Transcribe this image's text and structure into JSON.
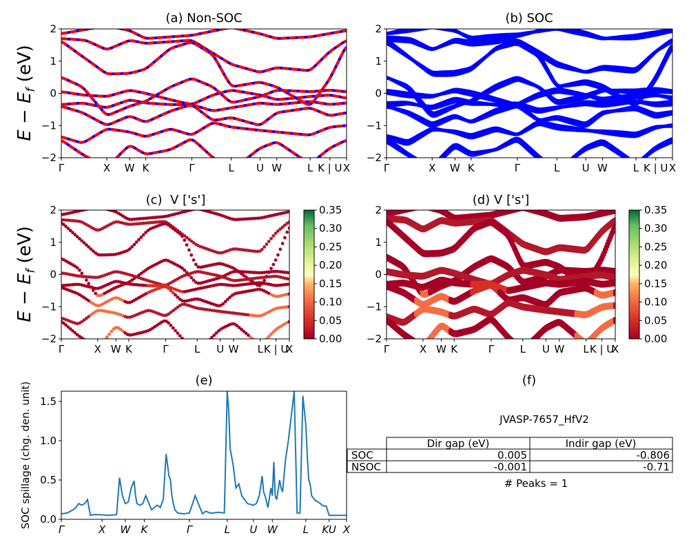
{
  "colors": {
    "nonsoc_a": "#ff0000",
    "nonsoc_b": "#0000ff",
    "soc": "#0000ff",
    "spillage": "#1f77b4"
  },
  "chart_data": [
    {
      "id": "a",
      "type": "line",
      "title": "(a) Non-SOC",
      "ylabel": "E − E_f (eV)",
      "ylim": [
        -2,
        2
      ],
      "yticks": [
        "2",
        "1",
        "0",
        "−1",
        "−2"
      ],
      "kpoints": [
        "Γ",
        "X",
        "W",
        "K",
        "Γ",
        "L",
        "U",
        "W",
        "L",
        "K | U",
        "X"
      ],
      "kpos": [
        0,
        1.5,
        2.25,
        2.78,
        4.3,
        5.6,
        6.55,
        7.1,
        8.2,
        8.85,
        9.4
      ],
      "bands": [
        [
          [
            0,
            1.85
          ],
          [
            1.5,
            2.1
          ],
          [
            2.25,
            1.95
          ],
          [
            2.78,
            1.7
          ],
          [
            4.3,
            1.8
          ],
          [
            5.6,
            2.05
          ],
          [
            6.55,
            1.85
          ],
          [
            7.1,
            1.7
          ],
          [
            8.2,
            1.75
          ],
          [
            9.4,
            1.95
          ]
        ],
        [
          [
            0,
            1.7
          ],
          [
            0.8,
            1.65
          ],
          [
            1.5,
            1.35
          ],
          [
            2.25,
            1.65
          ],
          [
            2.78,
            1.55
          ],
          [
            4.3,
            1.65
          ],
          [
            5.6,
            0.9
          ],
          [
            6.55,
            0.65
          ],
          [
            7.1,
            0.8
          ],
          [
            8.2,
            0.7
          ],
          [
            8.85,
            1.3
          ],
          [
            9.4,
            1.65
          ]
        ],
        [
          [
            0,
            1.62
          ],
          [
            1.5,
            0.6
          ],
          [
            2.25,
            0.62
          ],
          [
            2.78,
            0.75
          ],
          [
            3.6,
            1.4
          ],
          [
            4.3,
            1.6
          ],
          [
            5.0,
            1.2
          ],
          [
            5.6,
            0.2
          ],
          [
            6.55,
            0.35
          ],
          [
            7.1,
            0.2
          ],
          [
            8.2,
            -0.4
          ],
          [
            8.85,
            0.45
          ],
          [
            9.4,
            1.5
          ]
        ],
        [
          [
            0,
            0.5
          ],
          [
            0.7,
            0.2
          ],
          [
            1.5,
            -0.7
          ],
          [
            2.25,
            -0.4
          ],
          [
            2.78,
            -0.25
          ],
          [
            3.6,
            0.2
          ],
          [
            4.3,
            0.47
          ],
          [
            5.0,
            0.2
          ],
          [
            5.6,
            -0.3
          ],
          [
            6.55,
            -0.1
          ],
          [
            7.1,
            0.1
          ],
          [
            8.2,
            0.05
          ],
          [
            8.85,
            0.1
          ],
          [
            9.4,
            0.05
          ]
        ],
        [
          [
            0,
            0.05
          ],
          [
            0.7,
            -0.05
          ],
          [
            1.5,
            -0.1
          ],
          [
            2.25,
            0.1
          ],
          [
            2.78,
            0.0
          ],
          [
            3.6,
            -0.2
          ],
          [
            4.3,
            -0.35
          ],
          [
            5.0,
            -0.05
          ],
          [
            5.6,
            0.1
          ],
          [
            6.55,
            -0.05
          ],
          [
            7.1,
            -0.2
          ],
          [
            8.2,
            -0.1
          ],
          [
            8.85,
            -0.05
          ],
          [
            9.4,
            -0.15
          ]
        ],
        [
          [
            0,
            -0.35
          ],
          [
            0.7,
            -0.3
          ],
          [
            1.5,
            -0.45
          ],
          [
            2.25,
            -0.2
          ],
          [
            2.78,
            -0.3
          ],
          [
            3.6,
            -0.35
          ],
          [
            4.3,
            -0.35
          ],
          [
            5.0,
            -0.55
          ],
          [
            5.6,
            -0.45
          ],
          [
            6.55,
            -0.3
          ],
          [
            7.1,
            -0.35
          ],
          [
            8.2,
            -0.25
          ],
          [
            8.85,
            -0.35
          ],
          [
            9.4,
            -0.3
          ]
        ],
        [
          [
            0,
            -0.4
          ],
          [
            0.7,
            -0.6
          ],
          [
            1.5,
            -1.0
          ],
          [
            2.25,
            -0.7
          ],
          [
            2.78,
            -0.9
          ],
          [
            3.6,
            -0.55
          ],
          [
            4.3,
            -0.35
          ],
          [
            5.0,
            -0.85
          ],
          [
            5.6,
            -0.75
          ],
          [
            6.55,
            -1.0
          ],
          [
            7.1,
            -0.6
          ],
          [
            8.2,
            -0.45
          ],
          [
            8.85,
            -0.7
          ],
          [
            9.4,
            -0.6
          ]
        ],
        [
          [
            0,
            -1.35
          ],
          [
            0.7,
            -1.55
          ],
          [
            1.5,
            -1.1
          ],
          [
            2.25,
            -1.2
          ],
          [
            2.78,
            -1.35
          ],
          [
            3.6,
            -1.1
          ],
          [
            4.3,
            -1.3
          ],
          [
            5.0,
            -0.9
          ],
          [
            5.6,
            -1.05
          ],
          [
            6.55,
            -1.15
          ],
          [
            7.1,
            -1.2
          ],
          [
            8.2,
            -1.3
          ],
          [
            8.85,
            -1.05
          ],
          [
            9.4,
            -1.0
          ]
        ],
        [
          [
            0,
            -1.45
          ],
          [
            0.7,
            -1.9
          ],
          [
            1.5,
            -2.3
          ],
          [
            2.25,
            -1.6
          ],
          [
            2.78,
            -1.9
          ],
          [
            3.6,
            -1.75
          ],
          [
            4.3,
            -1.4
          ],
          [
            5.0,
            -2.0
          ],
          [
            5.6,
            -2.4
          ],
          [
            6.55,
            -1.7
          ],
          [
            7.1,
            -1.5
          ],
          [
            8.2,
            -2.2
          ],
          [
            8.85,
            -1.7
          ],
          [
            9.4,
            -1.45
          ]
        ]
      ]
    },
    {
      "id": "b",
      "type": "line",
      "title": "(b) SOC",
      "ylim": [
        -2,
        2
      ],
      "yticks": [
        "2",
        "1",
        "0",
        "−1",
        "−2"
      ],
      "kpoints": [
        "Γ",
        "X",
        "W",
        "K",
        "Γ",
        "L",
        "U",
        "W",
        "L",
        "K | U",
        "X"
      ],
      "kpos": [
        0,
        1.5,
        2.25,
        2.78,
        4.3,
        5.6,
        6.55,
        7.1,
        8.2,
        8.85,
        9.4
      ]
    },
    {
      "id": "c",
      "type": "scatter",
      "title": "(c)  V ['s']",
      "ylabel": "E − E_f (eV)",
      "ylim": [
        -2,
        2
      ],
      "yticks": [
        "2",
        "1",
        "0",
        "−1",
        "−2"
      ],
      "kpoints": [
        "Γ",
        "X",
        "W",
        "K",
        "Γ",
        "L",
        "U",
        "W",
        "L",
        "K | U",
        "X"
      ],
      "kpos": [
        0,
        1.5,
        2.25,
        2.78,
        4.3,
        5.6,
        6.55,
        7.1,
        8.2,
        8.85,
        9.4
      ],
      "colorbar": {
        "min": 0.0,
        "max": 0.35,
        "ticks": [
          "0.35",
          "0.30",
          "0.25",
          "0.20",
          "0.15",
          "0.10",
          "0.05",
          "0.00"
        ]
      }
    },
    {
      "id": "d",
      "type": "scatter",
      "title": "(d) V ['s']",
      "ylim": [
        -2,
        2
      ],
      "yticks": [
        "2",
        "1",
        "0",
        "−1",
        "−2"
      ],
      "kpoints": [
        "Γ",
        "X",
        "W",
        "K",
        "Γ",
        "L",
        "U",
        "W",
        "L",
        "K | U",
        "X"
      ],
      "kpos": [
        0,
        1.5,
        2.25,
        2.78,
        4.3,
        5.6,
        6.55,
        7.1,
        8.2,
        8.85,
        9.4
      ],
      "colorbar": {
        "min": 0.0,
        "max": 0.35,
        "ticks": [
          "0.35",
          "0.30",
          "0.25",
          "0.20",
          "0.15",
          "0.10",
          "0.05",
          "0.00"
        ]
      }
    },
    {
      "id": "e",
      "type": "line",
      "title": "(e)",
      "ylabel": "SOC spillage (chg. den. unit)",
      "ylim": [
        0,
        1.63
      ],
      "yticks": [
        "1.5",
        "1.0",
        "0.5",
        "0.0"
      ],
      "kpoints": [
        "Γ",
        "X",
        "W",
        "K",
        "Γ",
        "L",
        "U",
        "W",
        "L",
        "KU",
        "X"
      ],
      "kpos": [
        0,
        1.4,
        2.2,
        2.85,
        4.4,
        5.7,
        6.6,
        7.25,
        8.4,
        9.2,
        9.8
      ],
      "x": [
        0,
        0.2,
        0.4,
        0.5,
        0.6,
        0.7,
        0.8,
        0.9,
        1.0,
        1.1,
        1.3,
        1.6,
        1.9,
        1.95,
        2.0,
        2.1,
        2.2,
        2.3,
        2.4,
        2.5,
        2.55,
        2.6,
        2.7,
        2.8,
        2.9,
        3.1,
        3.2,
        3.3,
        3.4,
        3.5,
        3.6,
        3.7,
        3.75,
        3.8,
        3.85,
        3.9,
        4.0,
        4.2,
        4.4,
        4.6,
        4.85,
        4.95,
        5.0,
        5.1,
        5.2,
        5.4,
        5.6,
        5.7,
        5.75,
        5.8,
        5.9,
        6.0,
        6.1,
        6.2,
        6.4,
        6.6,
        6.7,
        6.8,
        6.9,
        6.95,
        7.0,
        7.1,
        7.2,
        7.25,
        7.3,
        7.35,
        7.4,
        7.5,
        7.55,
        7.6,
        7.7,
        7.8,
        8.0,
        8.1,
        8.2,
        8.3,
        8.4,
        8.45,
        8.5,
        8.55,
        8.6,
        8.7,
        8.9,
        9.0,
        9.1,
        9.2,
        9.3,
        9.5,
        9.8
      ],
      "y": [
        0.07,
        0.08,
        0.12,
        0.15,
        0.2,
        0.18,
        0.2,
        0.25,
        0.05,
        0.06,
        0.06,
        0.05,
        0.06,
        0.3,
        0.53,
        0.3,
        0.2,
        0.22,
        0.4,
        0.49,
        0.3,
        0.2,
        0.18,
        0.2,
        0.3,
        0.12,
        0.15,
        0.18,
        0.15,
        0.25,
        0.83,
        0.55,
        0.5,
        0.3,
        0.2,
        0.12,
        0.08,
        0.07,
        0.08,
        0.3,
        0.07,
        0.1,
        0.1,
        0.08,
        0.08,
        0.09,
        0.08,
        1.63,
        1.4,
        0.9,
        0.7,
        0.4,
        0.45,
        0.3,
        0.2,
        0.18,
        0.2,
        0.3,
        0.55,
        0.35,
        0.3,
        0.15,
        0.4,
        0.3,
        0.73,
        0.3,
        0.25,
        0.5,
        0.4,
        0.35,
        0.75,
        1.0,
        1.63,
        0.08,
        0.08,
        1.57,
        1.2,
        0.8,
        0.5,
        0.45,
        0.3,
        0.25,
        0.2,
        0.17,
        0.17,
        0.05,
        0.05,
        0.05,
        0.05
      ]
    }
  ],
  "panel_f": {
    "title": "(f)",
    "material": "JVASP-7657_HfV2",
    "table": {
      "headers": [
        "",
        "Dir gap (eV)",
        "Indir gap (eV)"
      ],
      "rows": [
        [
          "SOC",
          "0.005",
          "-0.806"
        ],
        [
          "NSOC",
          "-0.001",
          "-0.71"
        ]
      ]
    },
    "peaks": "# Peaks = 1"
  }
}
